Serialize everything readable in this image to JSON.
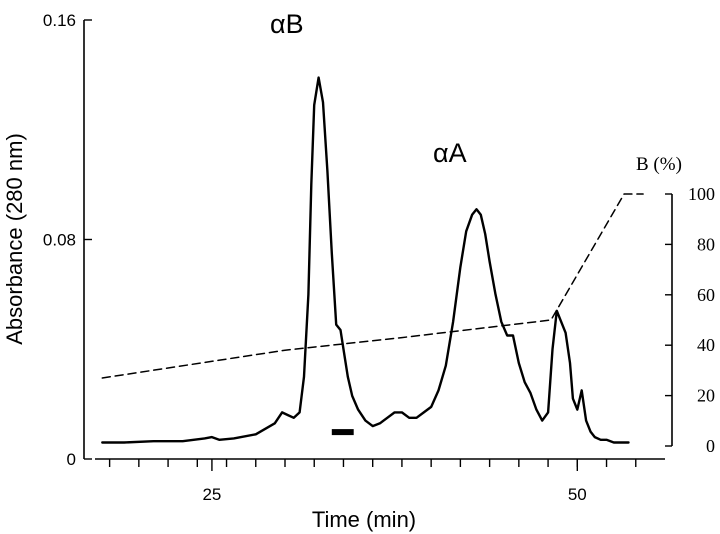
{
  "chart_data": {
    "type": "line",
    "xlabel": "Time (min)",
    "ylabel": "Absorbance (280 nm)",
    "y2label": "B (%)",
    "xlim": [
      17,
      56
    ],
    "ylim": [
      0,
      0.16
    ],
    "y2lim": [
      0,
      100
    ],
    "x_ticks_labeled": [
      25,
      50
    ],
    "y_ticks": [
      "0",
      "0.08",
      "0.16"
    ],
    "y2_ticks": [
      0,
      20,
      40,
      60,
      80,
      100
    ],
    "grid": false,
    "annotations": [
      {
        "text": "αB",
        "x": 32.5,
        "y": 0.158
      },
      {
        "text": "αA",
        "x": 43.3,
        "y": 0.108
      }
    ],
    "collection_bar": {
      "x_start": 33.2,
      "x_end": 34.7,
      "y": 0.0098
    },
    "series": [
      {
        "style": "solid",
        "axis": "left",
        "x": [
          17.5,
          19,
          21,
          23,
          24.5,
          25.0,
          25.5,
          26.5,
          28,
          29.3,
          29.8,
          30.2,
          30.6,
          31.0,
          31.3,
          31.6,
          31.8,
          32.0,
          32.3,
          32.6,
          32.9,
          33.2,
          33.5,
          33.8,
          34.0,
          34.3,
          34.6,
          35.0,
          35.5,
          36.0,
          36.5,
          37.0,
          37.5,
          38.0,
          38.5,
          39.0,
          39.5,
          40.0,
          40.5,
          41.0,
          41.5,
          42.0,
          42.4,
          42.8,
          43.1,
          43.4,
          43.7,
          44.0,
          44.4,
          44.8,
          45.2,
          45.6,
          46.0,
          46.4,
          46.8,
          47.2,
          47.6,
          48.0,
          48.3,
          48.6,
          48.9,
          49.2,
          49.5,
          49.7,
          50.0,
          50.3,
          50.6,
          50.9,
          51.2,
          51.6,
          52.0,
          52.5,
          53.0,
          53.5
        ],
        "values": [
          0.006,
          0.006,
          0.0065,
          0.0065,
          0.0075,
          0.008,
          0.007,
          0.0075,
          0.009,
          0.013,
          0.017,
          0.016,
          0.015,
          0.017,
          0.03,
          0.06,
          0.1,
          0.129,
          0.139,
          0.13,
          0.105,
          0.075,
          0.049,
          0.047,
          0.04,
          0.03,
          0.023,
          0.018,
          0.014,
          0.012,
          0.013,
          0.015,
          0.017,
          0.017,
          0.015,
          0.015,
          0.017,
          0.019,
          0.025,
          0.034,
          0.05,
          0.07,
          0.083,
          0.089,
          0.091,
          0.089,
          0.082,
          0.072,
          0.06,
          0.05,
          0.045,
          0.045,
          0.035,
          0.028,
          0.024,
          0.018,
          0.014,
          0.017,
          0.04,
          0.054,
          0.05,
          0.046,
          0.035,
          0.022,
          0.018,
          0.025,
          0.014,
          0.01,
          0.008,
          0.007,
          0.007,
          0.006,
          0.006,
          0.006
        ]
      },
      {
        "style": "dashed",
        "axis": "right",
        "x": [
          17.5,
          30.0,
          38.0,
          48.2,
          53.2,
          54.5
        ],
        "values": [
          27,
          38,
          43,
          50,
          100,
          100
        ]
      }
    ]
  }
}
